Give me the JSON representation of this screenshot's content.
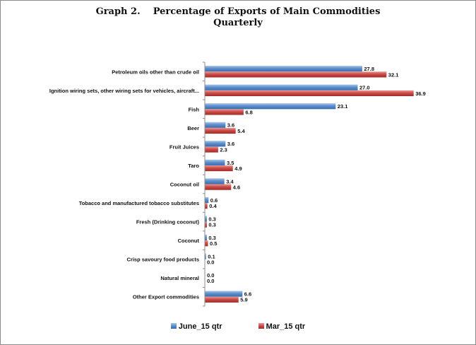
{
  "chart_data": {
    "type": "bar",
    "orientation": "horizontal",
    "title": "Graph 2.    Percentage of Exports of Main Commodities",
    "subtitle": "Quarterly",
    "categories": [
      "Petroleum oils other than crude oil",
      "Ignition wiring sets, other wiring sets for vehicles, aircraft...",
      "Fish",
      "Beer",
      "Fruit Juices",
      "Taro",
      "Coconut oil",
      "Tobacco and manufactured tobacco substitutes",
      "Fresh (Drinking coconut)",
      "Coconut",
      "Crisp savoury food products",
      "Natural mineral",
      "Other Export commodities"
    ],
    "series": [
      {
        "name": "June_15 qtr",
        "color": "#4f81bd",
        "values": [
          27.8,
          27.0,
          23.1,
          3.6,
          3.6,
          3.5,
          3.4,
          0.6,
          0.3,
          0.3,
          0.1,
          0.0,
          6.6
        ]
      },
      {
        "name": "Mar_15 qtr",
        "color": "#c0504d",
        "values": [
          32.1,
          36.9,
          6.8,
          5.4,
          2.3,
          4.9,
          4.6,
          0.4,
          0.3,
          0.5,
          0.0,
          0.0,
          5.9
        ]
      }
    ],
    "value_labels": [
      [
        "27.8",
        "27.0",
        "23.1",
        "3.6",
        "3.6",
        "3.5",
        "3.4",
        "0.6",
        "0.3",
        "0.3",
        "0.1",
        "0.0",
        "6.6"
      ],
      [
        "32.1",
        "36.9",
        "6.8",
        "5.4",
        "2.3",
        "4.9",
        "4.6",
        "0.4",
        "0.3",
        "0.5",
        "0.0",
        "0.0",
        "5.9"
      ]
    ],
    "xlim": [
      0,
      40
    ],
    "grid": false,
    "legend_position": "bottom"
  }
}
